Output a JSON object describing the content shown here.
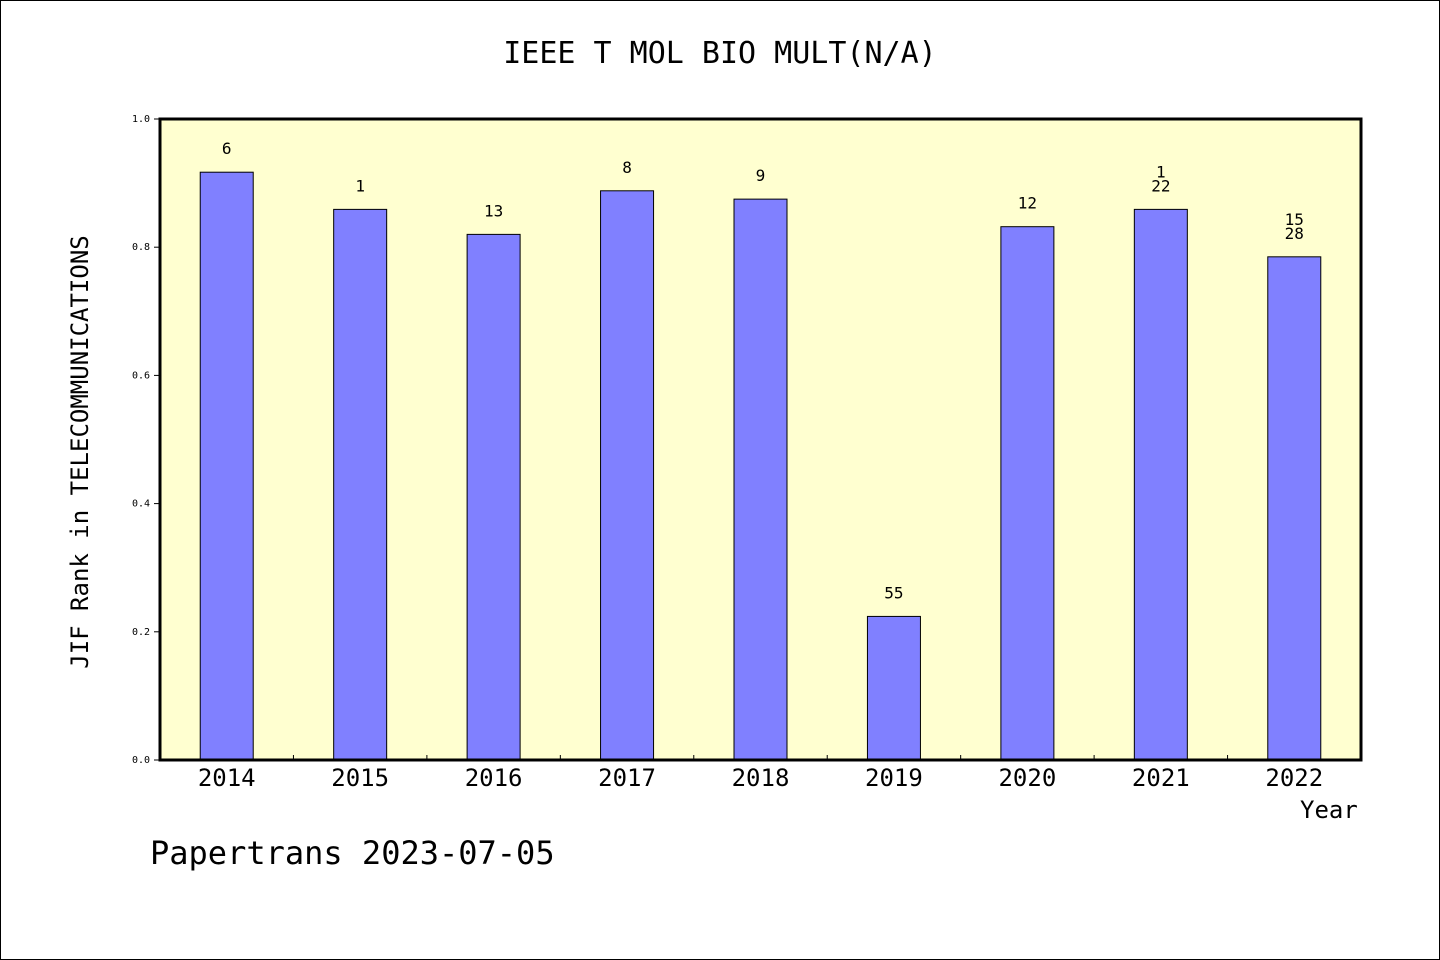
{
  "chart_data": {
    "type": "bar",
    "title": "IEEE T MOL BIO MULT(N/A)",
    "xlabel": "Year",
    "ylabel": "JIF Rank in TELECOMMUNICATIONS",
    "categories": [
      "2014",
      "2015",
      "2016",
      "2017",
      "2018",
      "2019",
      "2020",
      "2021",
      "2022"
    ],
    "values": [
      0.917,
      0.859,
      0.82,
      0.888,
      0.875,
      0.224,
      0.832,
      0.859,
      0.785
    ],
    "bar_labels": [
      [
        "6"
      ],
      [
        "1"
      ],
      [
        "13"
      ],
      [
        "8"
      ],
      [
        "9"
      ],
      [
        "55"
      ],
      [
        "12"
      ],
      [
        "1",
        "22"
      ],
      [
        "15",
        "28"
      ]
    ],
    "ylim": [
      0,
      1.0
    ],
    "yticks": [
      "0.0",
      "0.2",
      "0.4",
      "0.6",
      "0.8",
      "1.0"
    ],
    "grid": false,
    "colors": {
      "bar_fill": "#8080ff",
      "plot_background": "#ffffd0",
      "axis": "#000000"
    }
  },
  "footer": {
    "text": "Papertrans 2023-07-05"
  }
}
